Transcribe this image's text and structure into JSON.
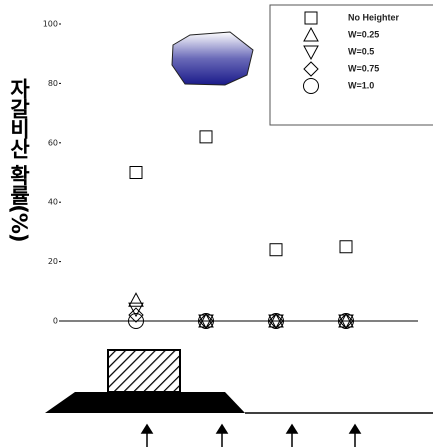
{
  "chart_data": {
    "type": "scatter",
    "ylabel": "자갈비산 확률(%)",
    "categories": [
      null,
      null,
      null,
      null
    ],
    "ylim": [
      0,
      100
    ],
    "yticks": [
      0,
      20,
      40,
      60,
      80,
      100
    ],
    "legend": "upper right",
    "series": [
      {
        "name": "No Heighter",
        "marker": "square",
        "color": "#000000",
        "values": [
          50,
          62,
          24,
          25
        ]
      },
      {
        "name": "W=0.25",
        "marker": "triangle-up",
        "color": "#000000",
        "values": [
          7,
          0,
          0,
          0
        ]
      },
      {
        "name": "W=0.5",
        "marker": "triangle-down",
        "color": "#000000",
        "values": [
          4,
          0,
          0,
          0
        ]
      },
      {
        "name": "W=0.75",
        "marker": "diamond",
        "color": "#000000",
        "values": [
          2,
          0,
          0,
          0
        ]
      },
      {
        "name": "W=1.0",
        "marker": "circle",
        "color": "#000000",
        "values": [
          0,
          0,
          0,
          0
        ]
      }
    ]
  }
}
